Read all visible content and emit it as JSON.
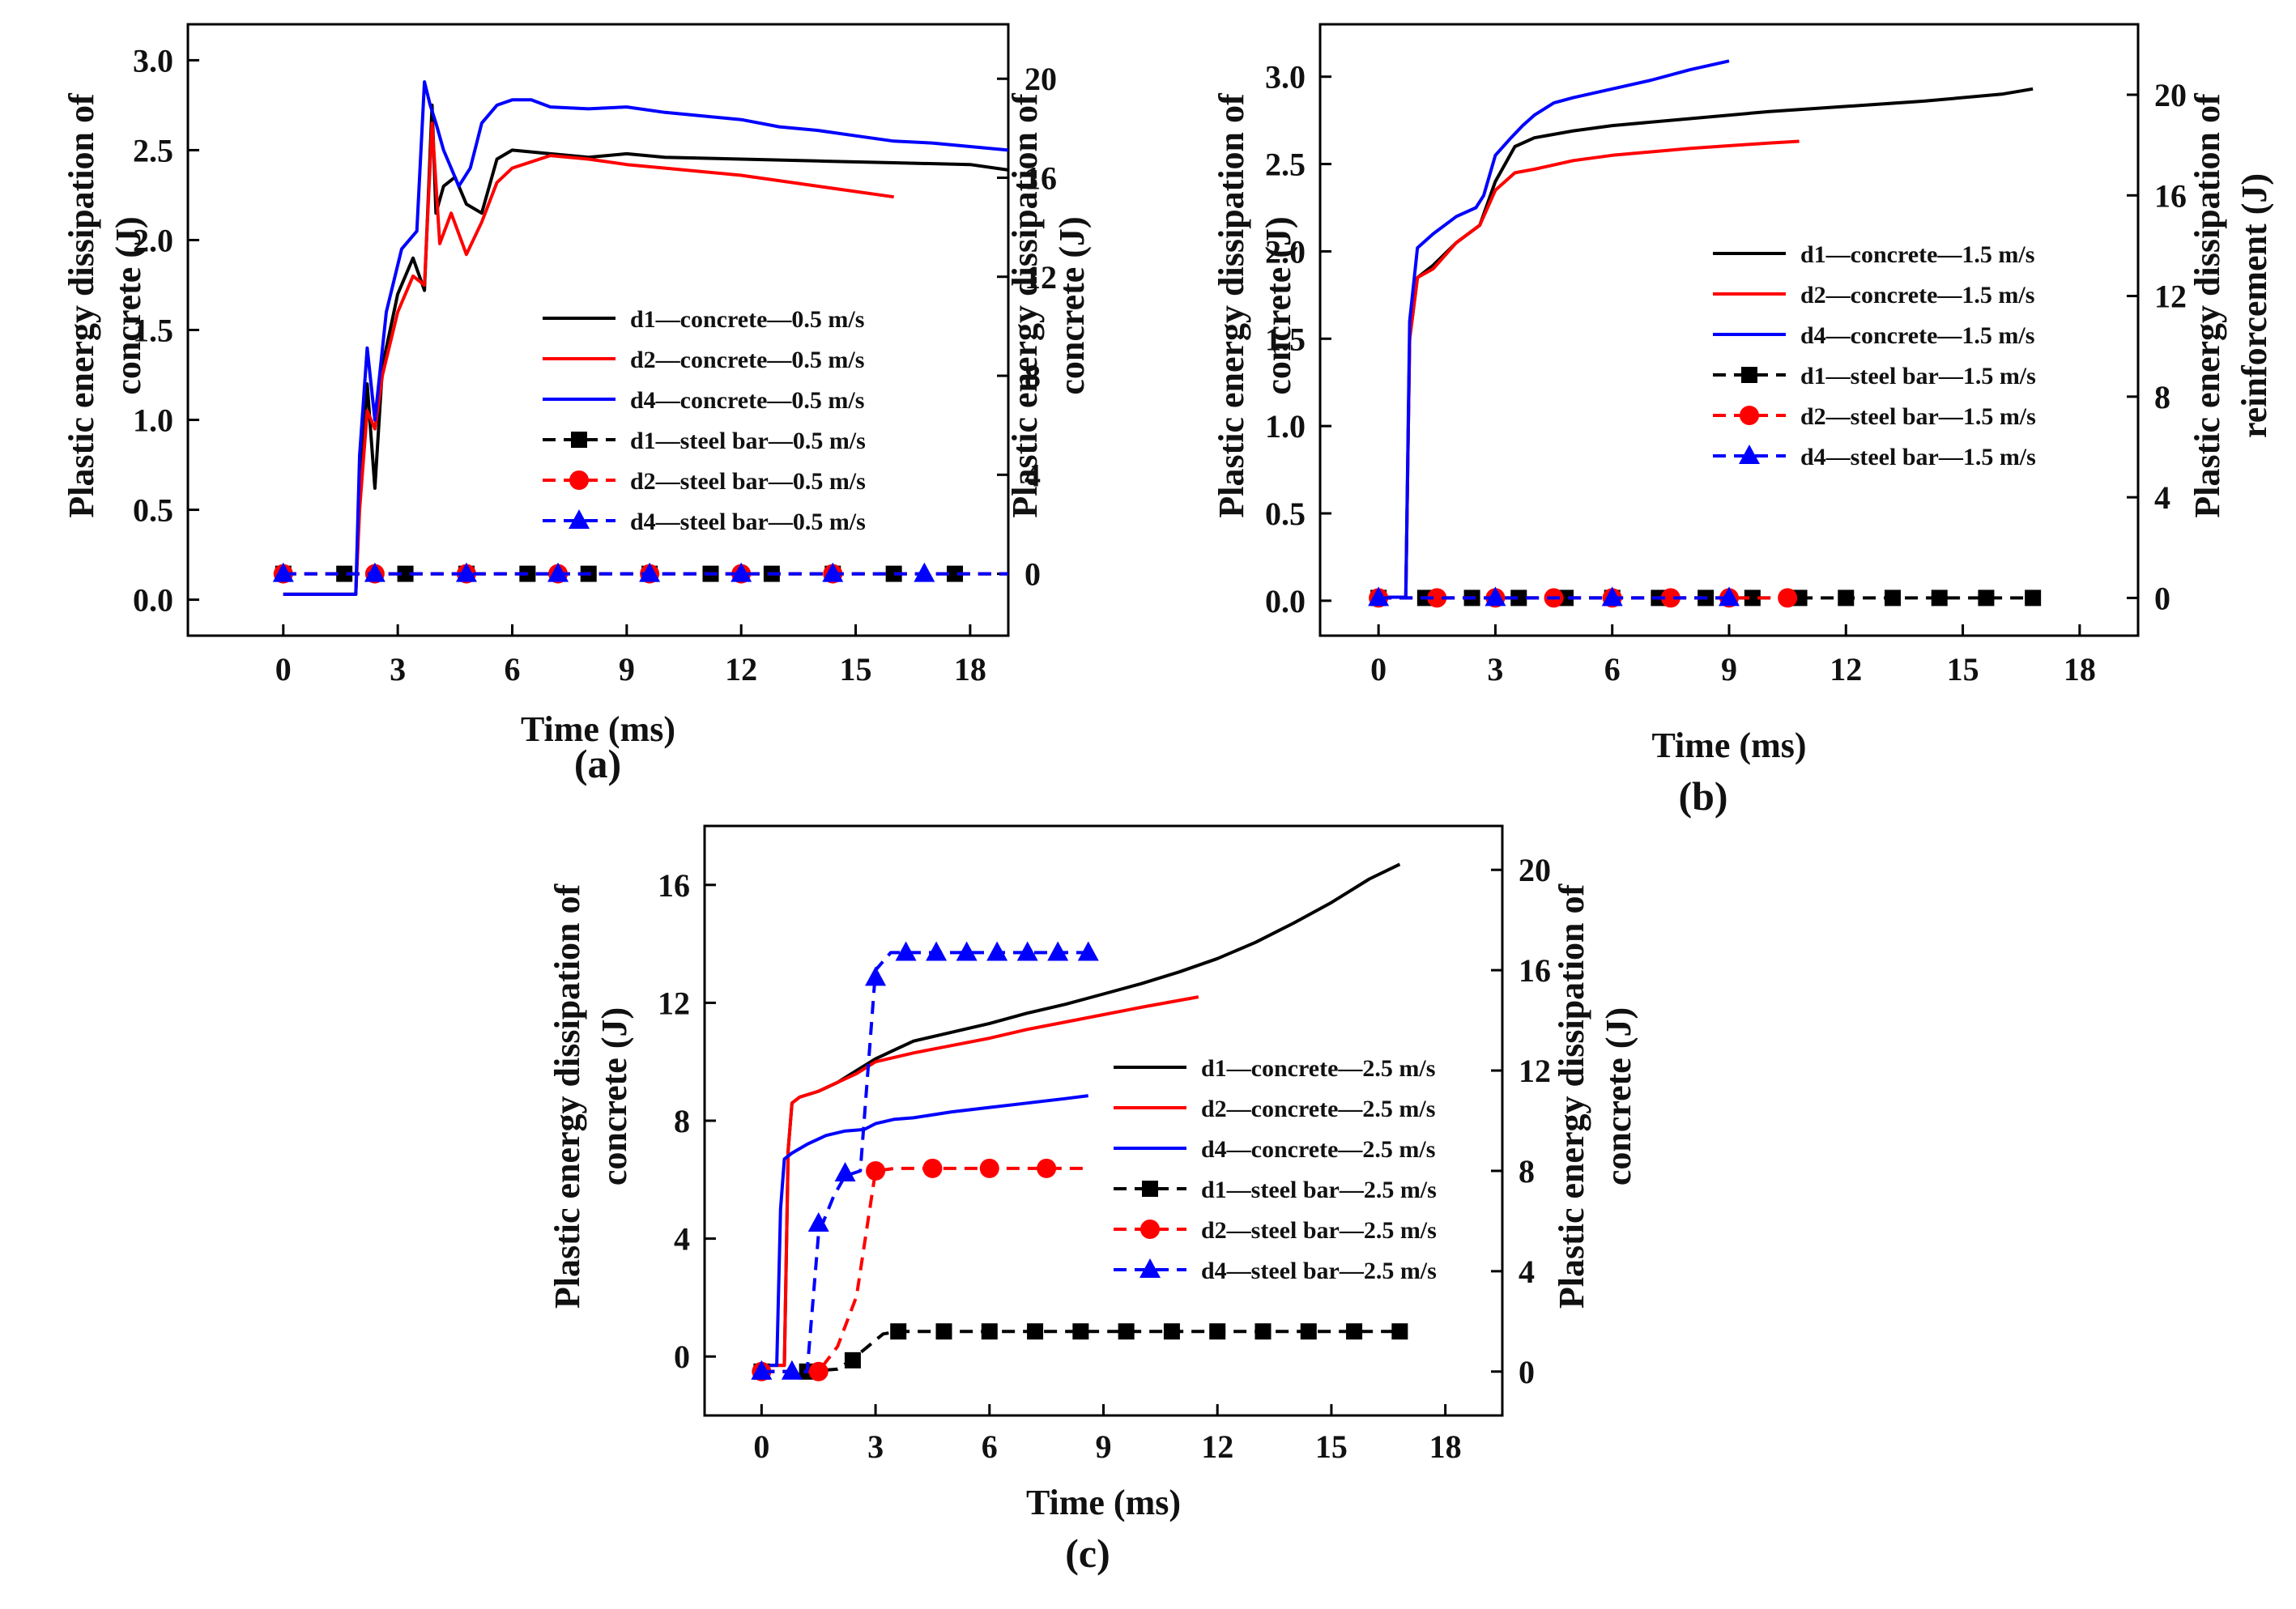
{
  "colors": {
    "d1": "#000000",
    "d2": "#ff0000",
    "d4": "#0000ff"
  },
  "chart_data": [
    {
      "type": "line",
      "panel_label": "(a)",
      "xlabel": "Time (ms)",
      "ylabel_left": [
        "Plastic energy dissipation of",
        "concrete (J)"
      ],
      "ylabel_right": [
        "Plastic energy dissipation of",
        "concrete (J)"
      ],
      "xlim": [
        -2.5,
        19
      ],
      "ylim_left": [
        -0.2,
        3.2
      ],
      "ylim_right": [
        -2.5,
        22.2
      ],
      "xticks": [
        "0",
        "3",
        "6",
        "9",
        "12",
        "15",
        "18"
      ],
      "yticks_left": [
        "0.0",
        "0.5",
        "1.0",
        "1.5",
        "2.0",
        "2.5",
        "3.0"
      ],
      "yticks_right": [
        "0",
        "4",
        "8",
        "12",
        "16",
        "20"
      ],
      "legend_position": "center-right",
      "series": [
        {
          "name": "d1—concrete—0.5 m/s",
          "axis": "left",
          "color": "#000000",
          "dash": "solid",
          "marker": "none",
          "x": [
            0,
            1.9,
            2.0,
            2.2,
            2.4,
            2.6,
            3.0,
            3.4,
            3.7,
            3.9,
            4.0,
            4.2,
            4.5,
            4.8,
            5.2,
            5.6,
            6.0,
            7.0,
            8.0,
            9.0,
            10.0,
            12.0,
            14.0,
            16.0,
            18.0,
            19.0
          ],
          "y": [
            0.03,
            0.03,
            0.6,
            1.2,
            0.62,
            1.3,
            1.7,
            1.9,
            1.72,
            2.75,
            2.15,
            2.3,
            2.35,
            2.2,
            2.15,
            2.45,
            2.5,
            2.48,
            2.46,
            2.48,
            2.46,
            2.45,
            2.44,
            2.43,
            2.42,
            2.39
          ]
        },
        {
          "name": "d2—concrete—0.5 m/s",
          "axis": "left",
          "color": "#ff0000",
          "dash": "solid",
          "marker": "none",
          "x": [
            0,
            1.9,
            2.0,
            2.2,
            2.4,
            2.6,
            3.0,
            3.4,
            3.7,
            3.9,
            4.1,
            4.4,
            4.8,
            5.2,
            5.6,
            6.0,
            7.0,
            8.0,
            9.0,
            10.0,
            12.0,
            14.0,
            16.0
          ],
          "y": [
            0.03,
            0.03,
            0.5,
            1.05,
            0.95,
            1.25,
            1.6,
            1.8,
            1.75,
            2.65,
            1.98,
            2.15,
            1.92,
            2.1,
            2.32,
            2.4,
            2.47,
            2.45,
            2.42,
            2.4,
            2.36,
            2.3,
            2.24
          ]
        },
        {
          "name": "d4—concrete—0.5 m/s",
          "axis": "left",
          "color": "#0000ff",
          "dash": "solid",
          "marker": "none",
          "x": [
            0,
            1.9,
            2.0,
            2.2,
            2.4,
            2.7,
            3.1,
            3.5,
            3.7,
            3.85,
            4.0,
            4.2,
            4.6,
            4.9,
            5.2,
            5.6,
            6.0,
            6.5,
            7.0,
            8.0,
            9.0,
            10.0,
            11.0,
            12.0,
            13.0,
            14.0,
            15.0,
            16.0,
            17.0,
            18.0,
            19.0
          ],
          "y": [
            0.03,
            0.03,
            0.8,
            1.4,
            1.0,
            1.6,
            1.95,
            2.05,
            2.88,
            2.75,
            2.65,
            2.5,
            2.3,
            2.4,
            2.65,
            2.75,
            2.78,
            2.78,
            2.74,
            2.73,
            2.74,
            2.71,
            2.69,
            2.67,
            2.63,
            2.61,
            2.58,
            2.55,
            2.54,
            2.52,
            2.5
          ]
        },
        {
          "name": "d1—steel bar—0.5 m/s",
          "axis": "right",
          "color": "#000000",
          "dash": "dashed",
          "marker": "square",
          "x": [
            0,
            2.0,
            4.0,
            6.0,
            8.0,
            10.0,
            12.0,
            14.0,
            16.0,
            18.0,
            19.0
          ],
          "y": [
            0,
            0,
            0,
            0,
            0,
            0,
            0,
            0,
            0,
            0,
            0
          ],
          "marker_x": [
            0,
            1.6,
            3.2,
            4.8,
            6.4,
            8.0,
            9.6,
            11.2,
            12.8,
            14.4,
            16.0,
            17.6
          ]
        },
        {
          "name": "d2—steel bar—0.5 m/s",
          "axis": "right",
          "color": "#ff0000",
          "dash": "dashed",
          "marker": "circle",
          "x": [
            0,
            4.0,
            8.0,
            12.0,
            16.0,
            19.0
          ],
          "y": [
            0,
            0,
            0,
            0,
            0,
            0
          ],
          "marker_x": [
            0,
            2.4,
            4.8,
            7.2,
            9.6,
            12.0,
            14.4
          ]
        },
        {
          "name": "d4—steel bar—0.5 m/s",
          "axis": "right",
          "color": "#0000ff",
          "dash": "dashed",
          "marker": "triangle",
          "x": [
            0,
            4.0,
            8.0,
            12.0,
            16.0,
            19.0
          ],
          "y": [
            0,
            0,
            0,
            0,
            0,
            0
          ],
          "marker_x": [
            0,
            2.4,
            4.8,
            7.2,
            9.6,
            12.0,
            14.4,
            16.8
          ]
        }
      ]
    },
    {
      "type": "line",
      "panel_label": "(b)",
      "xlabel": "Time (ms)",
      "ylabel_left": [
        "Plastic energy dissipation of",
        "concrete (J)"
      ],
      "ylabel_right": [
        "Plastic energy dissipation of",
        "reinforcement (J)"
      ],
      "xlim": [
        -1.5,
        19.5
      ],
      "ylim_left": [
        -0.2,
        3.3
      ],
      "ylim_right": [
        -1.5,
        22.8
      ],
      "xticks": [
        "0",
        "3",
        "6",
        "9",
        "12",
        "15",
        "18"
      ],
      "yticks_left": [
        "0.0",
        "0.5",
        "1.0",
        "1.5",
        "2.0",
        "2.5",
        "3.0"
      ],
      "yticks_right": [
        "0",
        "4",
        "8",
        "12",
        "16",
        "20"
      ],
      "legend_position": "center-right",
      "series": [
        {
          "name": "d1—concrete—1.5 m/s",
          "axis": "left",
          "color": "#000000",
          "dash": "solid",
          "marker": "none",
          "x": [
            0,
            0.7,
            0.8,
            1.0,
            1.4,
            2.0,
            2.6,
            3.0,
            3.5,
            4.0,
            5.0,
            6.0,
            8.0,
            10.0,
            12.0,
            14.0,
            16.0,
            16.8
          ],
          "y": [
            0.02,
            0.02,
            1.5,
            1.85,
            1.92,
            2.05,
            2.15,
            2.4,
            2.6,
            2.65,
            2.69,
            2.72,
            2.76,
            2.8,
            2.83,
            2.86,
            2.9,
            2.93
          ]
        },
        {
          "name": "d2—concrete—1.5 m/s",
          "axis": "left",
          "color": "#ff0000",
          "dash": "solid",
          "marker": "none",
          "x": [
            0,
            0.7,
            0.8,
            1.0,
            1.4,
            2.0,
            2.6,
            3.0,
            3.5,
            4.0,
            5.0,
            6.0,
            8.0,
            10.0,
            10.8
          ],
          "y": [
            0.02,
            0.02,
            1.5,
            1.85,
            1.9,
            2.05,
            2.15,
            2.35,
            2.45,
            2.47,
            2.52,
            2.55,
            2.59,
            2.62,
            2.63
          ]
        },
        {
          "name": "d4—concrete—1.5 m/s",
          "axis": "left",
          "color": "#0000ff",
          "dash": "solid",
          "marker": "none",
          "x": [
            0,
            0.7,
            0.8,
            1.0,
            1.4,
            2.0,
            2.5,
            2.7,
            3.0,
            3.4,
            3.7,
            4.0,
            4.5,
            5.0,
            6.0,
            7.0,
            8.0,
            9.0
          ],
          "y": [
            0.02,
            0.02,
            1.6,
            2.02,
            2.1,
            2.2,
            2.25,
            2.32,
            2.55,
            2.65,
            2.72,
            2.78,
            2.85,
            2.88,
            2.93,
            2.98,
            3.04,
            3.09
          ]
        },
        {
          "name": "d1—steel bar—1.5 m/s",
          "axis": "right",
          "color": "#000000",
          "dash": "dashed",
          "marker": "square",
          "x": [
            0,
            4.0,
            8.0,
            12.0,
            16.8
          ],
          "y": [
            0,
            0,
            0,
            0,
            0
          ],
          "marker_x": [
            0,
            1.2,
            2.4,
            3.6,
            4.8,
            6.0,
            7.2,
            8.4,
            9.6,
            10.8,
            12.0,
            13.2,
            14.4,
            15.6,
            16.8
          ]
        },
        {
          "name": "d2—steel bar—1.5 m/s",
          "axis": "right",
          "color": "#ff0000",
          "dash": "dashed",
          "marker": "circle",
          "x": [
            0,
            4.0,
            8.0,
            10.5
          ],
          "y": [
            0,
            0,
            0,
            0
          ],
          "marker_x": [
            0,
            1.5,
            3.0,
            4.5,
            6.0,
            7.5,
            9.0,
            10.5
          ]
        },
        {
          "name": "d4—steel bar—1.5 m/s",
          "axis": "right",
          "color": "#0000ff",
          "dash": "dashed",
          "marker": "triangle",
          "x": [
            0,
            3.0,
            6.0,
            9.0
          ],
          "y": [
            0,
            0,
            0,
            0
          ],
          "marker_x": [
            0,
            3.0,
            6.0,
            9.0
          ]
        }
      ]
    },
    {
      "type": "line",
      "panel_label": "(c)",
      "xlabel": "Time (ms)",
      "ylabel_left": [
        "Plastic energy dissipation of",
        "concrete (J)"
      ],
      "ylabel_right": [
        "Plastic energy dissipation of",
        "concrete (J)"
      ],
      "xlim": [
        -1.5,
        19.5
      ],
      "ylim_left": [
        -2,
        18
      ],
      "ylim_right": [
        -1.75,
        21.75
      ],
      "xticks": [
        "0",
        "3",
        "6",
        "9",
        "12",
        "15",
        "18"
      ],
      "yticks_left": [
        "0",
        "4",
        "8",
        "12",
        "16"
      ],
      "yticks_right": [
        "0",
        "4",
        "8",
        "12",
        "16",
        "20"
      ],
      "legend_position": "center-right",
      "series": [
        {
          "name": "d1—concrete—2.5 m/s",
          "axis": "left",
          "color": "#000000",
          "dash": "solid",
          "marker": "none",
          "x": [
            0,
            0.6,
            0.7,
            0.8,
            1.0,
            1.5,
            2.0,
            2.5,
            3.0,
            3.5,
            4.0,
            5.0,
            6.0,
            7.0,
            8.0,
            9.0,
            10.0,
            11.0,
            12.0,
            13.0,
            14.0,
            15.0,
            16.0,
            16.8
          ],
          "y": [
            -0.3,
            -0.3,
            7.0,
            8.6,
            8.8,
            9.0,
            9.3,
            9.7,
            10.1,
            10.4,
            10.7,
            11.0,
            11.3,
            11.65,
            11.95,
            12.3,
            12.65,
            13.05,
            13.5,
            14.05,
            14.7,
            15.4,
            16.2,
            16.7
          ]
        },
        {
          "name": "d2—concrete—2.5 m/s",
          "axis": "left",
          "color": "#ff0000",
          "dash": "solid",
          "marker": "none",
          "x": [
            0,
            0.6,
            0.7,
            0.8,
            1.0,
            1.5,
            2.0,
            2.5,
            3.0,
            4.0,
            5.0,
            6.0,
            7.0,
            8.0,
            9.0,
            10.0,
            11.5
          ],
          "y": [
            -0.3,
            -0.3,
            7.0,
            8.6,
            8.8,
            9.0,
            9.3,
            9.6,
            10.0,
            10.3,
            10.55,
            10.8,
            11.1,
            11.35,
            11.6,
            11.85,
            12.2
          ]
        },
        {
          "name": "d4—concrete—2.5 m/s",
          "axis": "left",
          "color": "#0000ff",
          "dash": "solid",
          "marker": "none",
          "x": [
            0,
            0.4,
            0.5,
            0.6,
            0.8,
            1.2,
            1.7,
            2.2,
            2.7,
            3.0,
            3.5,
            4.0,
            5.0,
            6.0,
            7.0,
            8.0,
            8.6
          ],
          "y": [
            -0.3,
            -0.3,
            5.0,
            6.7,
            6.9,
            7.2,
            7.5,
            7.65,
            7.7,
            7.9,
            8.05,
            8.1,
            8.3,
            8.45,
            8.6,
            8.75,
            8.85
          ]
        },
        {
          "name": "d1—steel bar—2.5 m/s",
          "axis": "right",
          "color": "#000000",
          "dash": "dashed",
          "marker": "square",
          "x": [
            0,
            1.2,
            2.0,
            2.4,
            2.8,
            3.2,
            3.6,
            5.0,
            8.0,
            12.0,
            16.8
          ],
          "y": [
            0,
            0,
            0.1,
            0.5,
            1.0,
            1.5,
            1.6,
            1.6,
            1.6,
            1.6,
            1.6
          ],
          "marker_x": [
            0,
            1.2,
            2.4,
            3.6,
            4.8,
            6.0,
            7.2,
            8.4,
            9.6,
            10.8,
            12.0,
            13.2,
            14.4,
            15.6,
            16.8
          ],
          "marker_y": [
            0,
            0,
            0.45,
            1.6,
            1.6,
            1.6,
            1.6,
            1.6,
            1.6,
            1.6,
            1.6,
            1.6,
            1.6,
            1.6,
            1.6
          ]
        },
        {
          "name": "d2—steel bar—2.5 m/s",
          "axis": "right",
          "color": "#ff0000",
          "dash": "dashed",
          "marker": "circle",
          "x": [
            0,
            1.5,
            2.0,
            2.5,
            2.8,
            3.0,
            3.5,
            5.0,
            6.0,
            8.6
          ],
          "y": [
            0,
            0,
            1.0,
            3.0,
            6.0,
            8.0,
            8.1,
            8.1,
            8.1,
            8.1
          ],
          "marker_x": [
            0,
            1.5,
            3.0,
            4.5,
            6.0,
            7.5
          ],
          "marker_y": [
            0,
            0,
            8.0,
            8.1,
            8.1,
            8.1
          ]
        },
        {
          "name": "d4—steel bar—2.5 m/s",
          "axis": "right",
          "color": "#0000ff",
          "dash": "dashed",
          "marker": "triangle",
          "x": [
            0,
            1.2,
            1.5,
            1.9,
            2.2,
            2.6,
            2.8,
            3.0,
            3.4,
            8.6
          ],
          "y": [
            0,
            0,
            5.5,
            7.0,
            7.8,
            8.0,
            12.0,
            16.0,
            16.7,
            16.7
          ],
          "marker_x": [
            0,
            0.8,
            1.5,
            2.2,
            3.0,
            3.8,
            4.6,
            5.4,
            6.2,
            7.0,
            7.8,
            8.6
          ],
          "marker_y": [
            0,
            0,
            5.9,
            7.9,
            15.7,
            16.7,
            16.7,
            16.7,
            16.7,
            16.7,
            16.7,
            16.7
          ]
        }
      ]
    }
  ]
}
